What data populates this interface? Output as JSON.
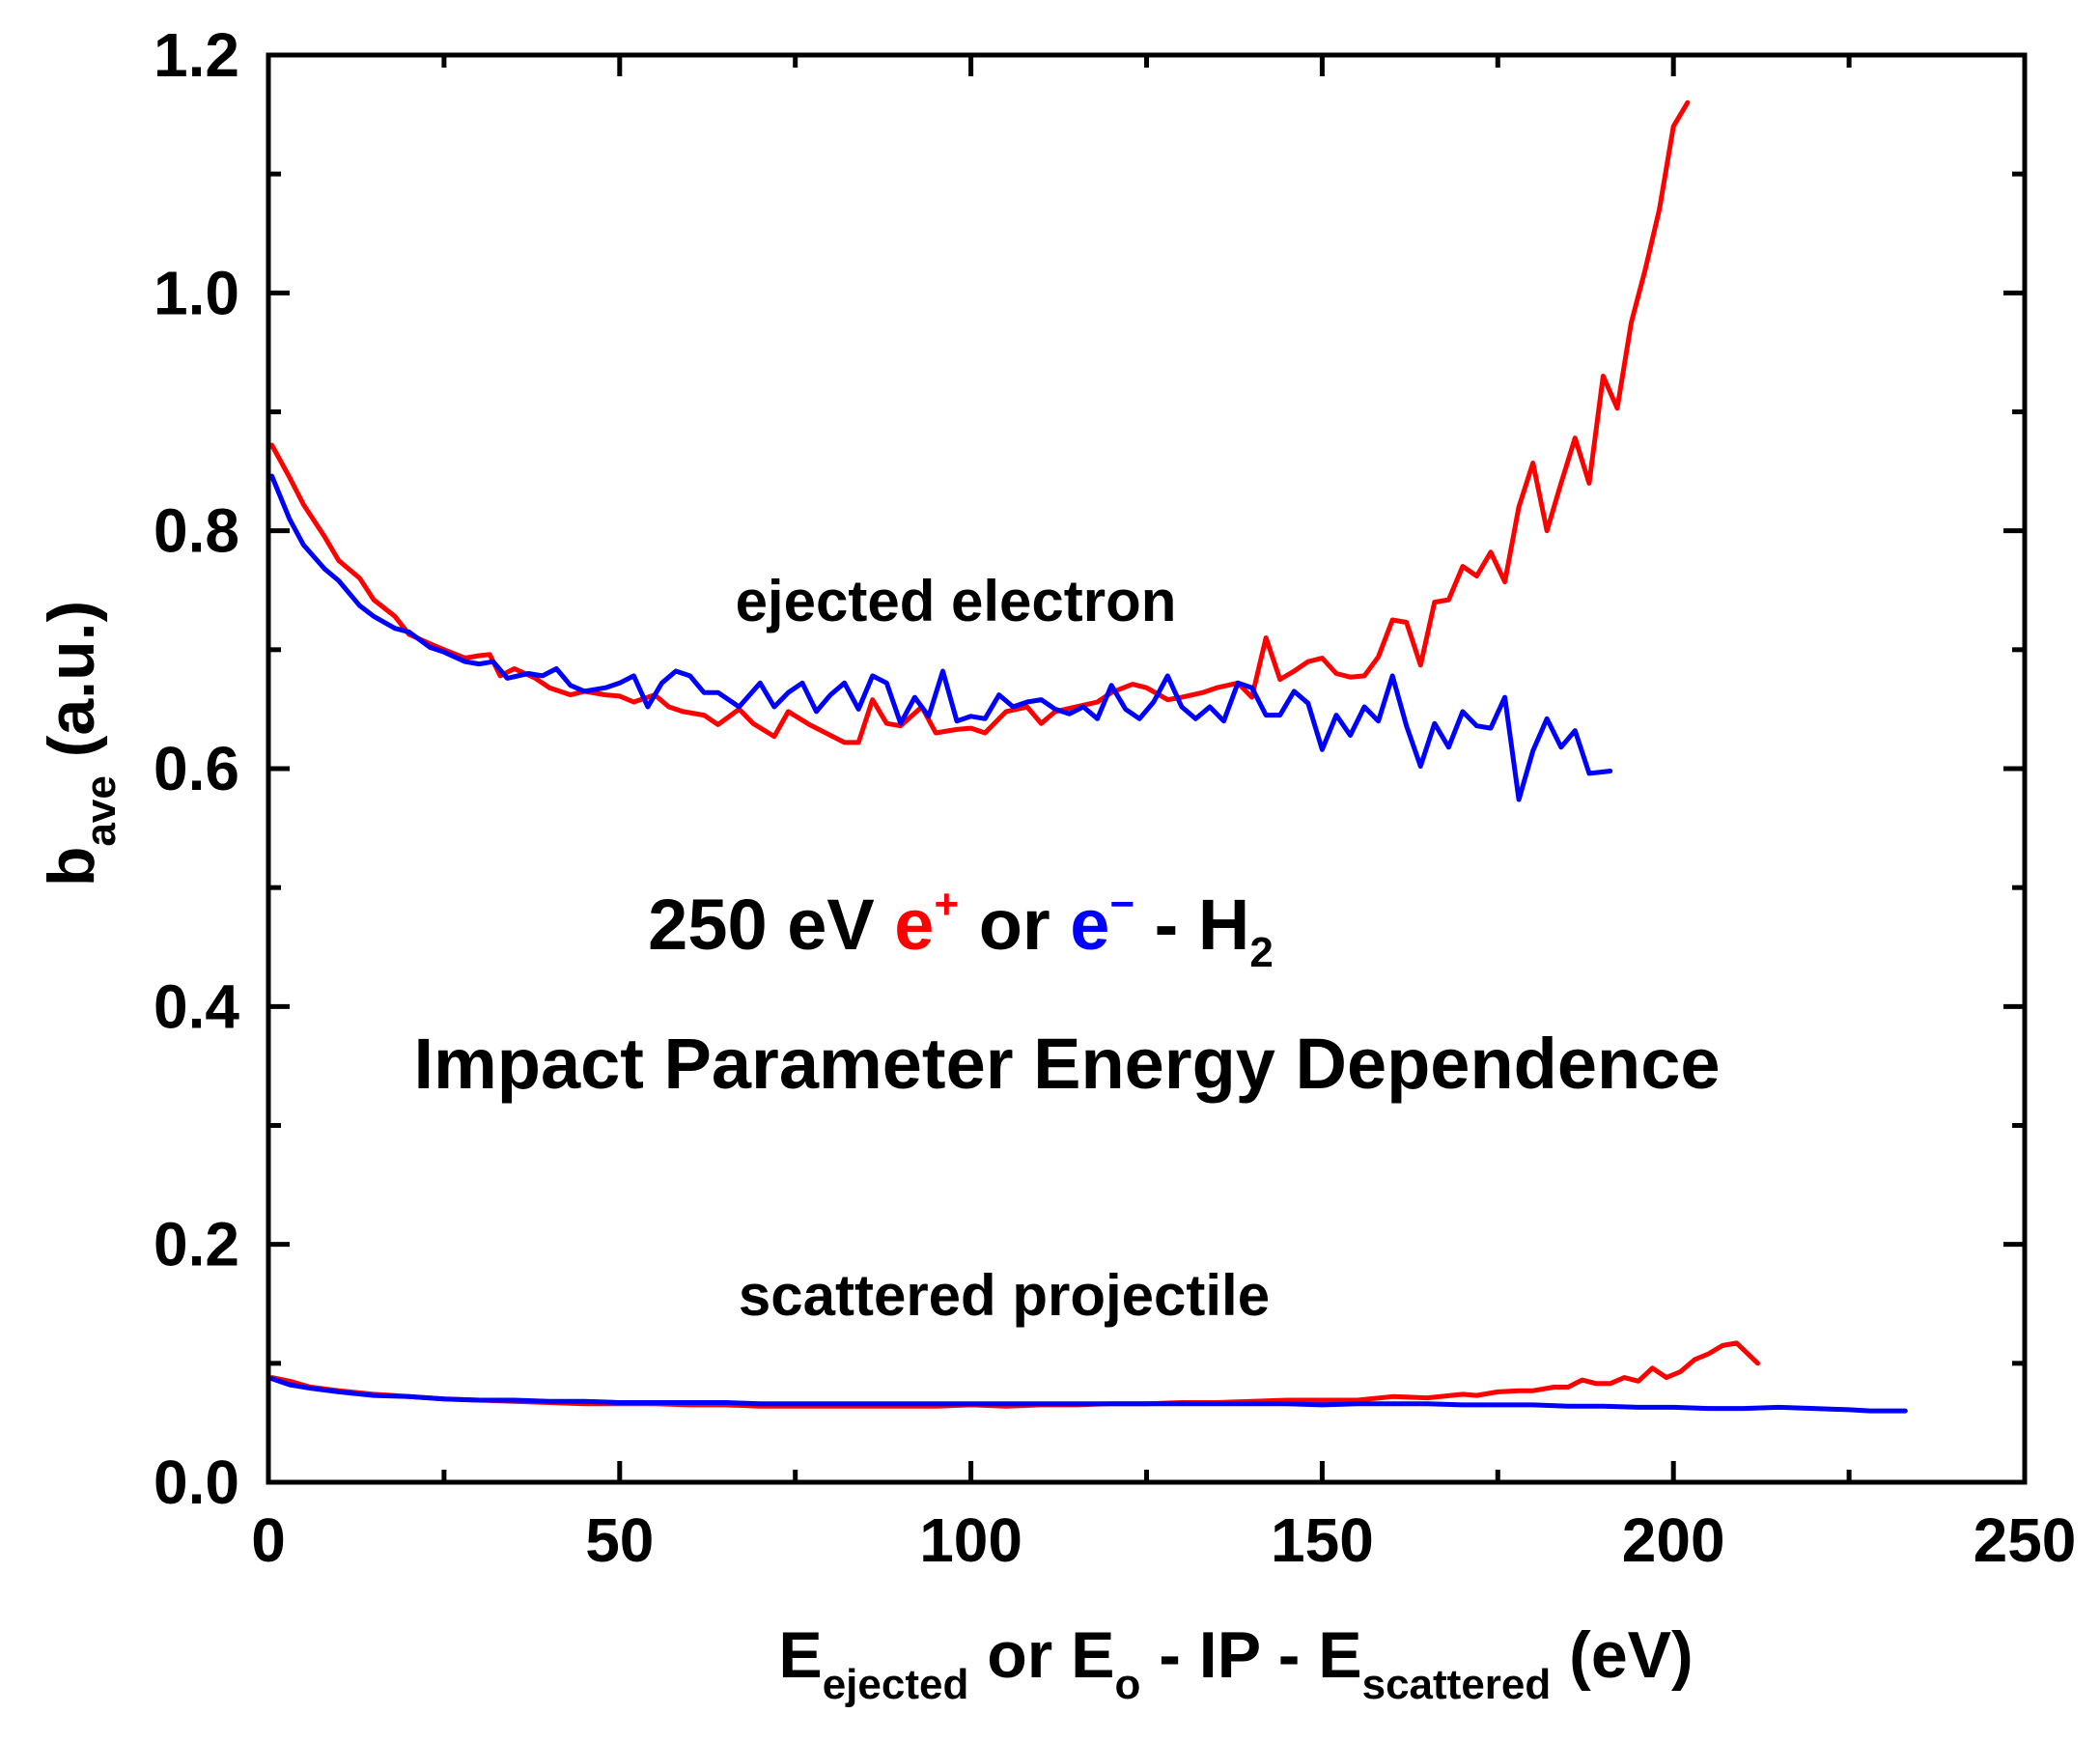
{
  "chart_data": {
    "type": "line",
    "title_line1": {
      "prefix": "250 eV ",
      "positron": "e",
      "positron_sup": "+",
      "or": " or ",
      "electron": "e",
      "electron_sup": "−",
      "target": " - H",
      "target_sub": "2"
    },
    "title_line2": "Impact Parameter Energy Dependence",
    "xlabel": {
      "e1": "E",
      "s1": "ejected",
      "or_e": " or E",
      "s2": "o",
      "mid": " - IP - E",
      "s3": "scattered",
      "unit": " (eV)"
    },
    "ylabel": {
      "main": "b",
      "sub": "ave",
      "unit": " (a.u.)"
    },
    "xlim": [
      0,
      250
    ],
    "ylim": [
      0.0,
      1.2
    ],
    "xticks": [
      "0",
      "50",
      "100",
      "150",
      "200",
      "250"
    ],
    "yticks": [
      "0.0",
      "0.2",
      "0.4",
      "0.6",
      "0.8",
      "1.0",
      "1.2"
    ],
    "annotations": {
      "ejected": "ejected electron",
      "scattered": "scattered projectile"
    },
    "colors": {
      "positron": "#ff0000",
      "electron": "#0000ff",
      "axis": "#000000"
    },
    "series": [
      {
        "name": "e+ ejected electron",
        "color": "#ff0000",
        "points": [
          [
            0.5,
            0.872
          ],
          [
            3,
            0.845
          ],
          [
            5,
            0.822
          ],
          [
            8,
            0.795
          ],
          [
            10,
            0.775
          ],
          [
            13,
            0.76
          ],
          [
            15,
            0.742
          ],
          [
            18,
            0.728
          ],
          [
            20,
            0.713
          ],
          [
            23,
            0.705
          ],
          [
            25,
            0.7
          ],
          [
            28,
            0.693
          ],
          [
            30,
            0.695
          ],
          [
            31.5,
            0.696
          ],
          [
            33,
            0.678
          ],
          [
            35,
            0.684
          ],
          [
            38,
            0.676
          ],
          [
            40,
            0.668
          ],
          [
            43,
            0.662
          ],
          [
            45,
            0.665
          ],
          [
            48,
            0.662
          ],
          [
            50,
            0.661
          ],
          [
            52,
            0.656
          ],
          [
            55,
            0.662
          ],
          [
            57,
            0.652
          ],
          [
            59,
            0.648
          ],
          [
            62,
            0.645
          ],
          [
            64,
            0.637
          ],
          [
            67,
            0.65
          ],
          [
            69,
            0.638
          ],
          [
            72,
            0.627
          ],
          [
            74,
            0.648
          ],
          [
            77,
            0.637
          ],
          [
            80,
            0.628
          ],
          [
            82,
            0.622
          ],
          [
            84,
            0.622
          ],
          [
            86,
            0.658
          ],
          [
            88,
            0.638
          ],
          [
            90,
            0.636
          ],
          [
            93,
            0.652
          ],
          [
            95,
            0.63
          ],
          [
            98,
            0.633
          ],
          [
            100,
            0.634
          ],
          [
            102,
            0.63
          ],
          [
            105,
            0.648
          ],
          [
            108,
            0.652
          ],
          [
            110,
            0.638
          ],
          [
            112,
            0.648
          ],
          [
            115,
            0.652
          ],
          [
            118,
            0.656
          ],
          [
            120,
            0.664
          ],
          [
            123,
            0.671
          ],
          [
            125,
            0.668
          ],
          [
            128,
            0.658
          ],
          [
            130,
            0.66
          ],
          [
            133,
            0.664
          ],
          [
            135,
            0.668
          ],
          [
            138,
            0.672
          ],
          [
            140,
            0.66
          ],
          [
            142,
            0.71
          ],
          [
            144,
            0.675
          ],
          [
            146,
            0.682
          ],
          [
            148,
            0.69
          ],
          [
            150,
            0.693
          ],
          [
            152,
            0.68
          ],
          [
            154,
            0.677
          ],
          [
            156,
            0.678
          ],
          [
            158,
            0.694
          ],
          [
            160,
            0.725
          ],
          [
            162,
            0.723
          ],
          [
            164,
            0.687
          ],
          [
            166,
            0.74
          ],
          [
            168,
            0.742
          ],
          [
            170,
            0.77
          ],
          [
            172,
            0.762
          ],
          [
            174,
            0.782
          ],
          [
            176,
            0.757
          ],
          [
            178,
            0.82
          ],
          [
            180,
            0.857
          ],
          [
            182,
            0.8
          ],
          [
            184,
            0.84
          ],
          [
            186,
            0.878
          ],
          [
            188,
            0.84
          ],
          [
            190,
            0.93
          ],
          [
            192,
            0.903
          ],
          [
            194,
            0.975
          ],
          [
            196,
            1.02
          ],
          [
            198,
            1.07
          ],
          [
            200,
            1.14
          ],
          [
            202,
            1.16
          ]
        ]
      },
      {
        "name": "e- ejected electron",
        "color": "#0000ff",
        "points": [
          [
            0.5,
            0.846
          ],
          [
            3,
            0.81
          ],
          [
            5,
            0.788
          ],
          [
            8,
            0.768
          ],
          [
            10,
            0.758
          ],
          [
            13,
            0.737
          ],
          [
            15,
            0.728
          ],
          [
            18,
            0.718
          ],
          [
            20,
            0.715
          ],
          [
            23,
            0.702
          ],
          [
            25,
            0.698
          ],
          [
            28,
            0.69
          ],
          [
            30,
            0.688
          ],
          [
            32,
            0.69
          ],
          [
            34,
            0.676
          ],
          [
            37,
            0.68
          ],
          [
            39,
            0.678
          ],
          [
            41,
            0.684
          ],
          [
            43,
            0.67
          ],
          [
            45,
            0.665
          ],
          [
            48,
            0.668
          ],
          [
            50,
            0.672
          ],
          [
            52,
            0.678
          ],
          [
            54,
            0.652
          ],
          [
            56,
            0.672
          ],
          [
            58,
            0.682
          ],
          [
            60,
            0.678
          ],
          [
            62,
            0.664
          ],
          [
            64,
            0.664
          ],
          [
            67,
            0.652
          ],
          [
            70,
            0.672
          ],
          [
            72,
            0.652
          ],
          [
            74,
            0.664
          ],
          [
            76,
            0.672
          ],
          [
            78,
            0.648
          ],
          [
            80,
            0.662
          ],
          [
            82,
            0.672
          ],
          [
            84,
            0.65
          ],
          [
            86,
            0.678
          ],
          [
            88,
            0.672
          ],
          [
            90,
            0.638
          ],
          [
            92,
            0.66
          ],
          [
            94,
            0.644
          ],
          [
            96,
            0.682
          ],
          [
            98,
            0.64
          ],
          [
            100,
            0.644
          ],
          [
            102,
            0.642
          ],
          [
            104,
            0.662
          ],
          [
            106,
            0.652
          ],
          [
            108,
            0.656
          ],
          [
            110,
            0.658
          ],
          [
            112,
            0.65
          ],
          [
            114,
            0.646
          ],
          [
            116,
            0.652
          ],
          [
            118,
            0.642
          ],
          [
            120,
            0.67
          ],
          [
            122,
            0.65
          ],
          [
            124,
            0.642
          ],
          [
            126,
            0.656
          ],
          [
            128,
            0.678
          ],
          [
            130,
            0.652
          ],
          [
            132,
            0.642
          ],
          [
            134,
            0.652
          ],
          [
            136,
            0.64
          ],
          [
            138,
            0.672
          ],
          [
            140,
            0.668
          ],
          [
            142,
            0.645
          ],
          [
            144,
            0.645
          ],
          [
            146,
            0.665
          ],
          [
            148,
            0.655
          ],
          [
            150,
            0.616
          ],
          [
            152,
            0.645
          ],
          [
            154,
            0.628
          ],
          [
            156,
            0.652
          ],
          [
            158,
            0.64
          ],
          [
            160,
            0.678
          ],
          [
            162,
            0.636
          ],
          [
            164,
            0.602
          ],
          [
            166,
            0.638
          ],
          [
            168,
            0.618
          ],
          [
            170,
            0.648
          ],
          [
            172,
            0.636
          ],
          [
            174,
            0.634
          ],
          [
            176,
            0.66
          ],
          [
            178,
            0.574
          ],
          [
            180,
            0.615
          ],
          [
            182,
            0.642
          ],
          [
            184,
            0.618
          ],
          [
            186,
            0.632
          ],
          [
            188,
            0.596
          ],
          [
            191,
            0.598
          ]
        ]
      },
      {
        "name": "e+ scattered projectile",
        "color": "#ff0000",
        "points": [
          [
            0.5,
            0.088
          ],
          [
            3,
            0.085
          ],
          [
            6,
            0.08
          ],
          [
            10,
            0.077
          ],
          [
            15,
            0.074
          ],
          [
            20,
            0.072
          ],
          [
            25,
            0.07
          ],
          [
            30,
            0.069
          ],
          [
            35,
            0.068
          ],
          [
            40,
            0.067
          ],
          [
            45,
            0.066
          ],
          [
            50,
            0.066
          ],
          [
            55,
            0.066
          ],
          [
            60,
            0.065
          ],
          [
            65,
            0.065
          ],
          [
            70,
            0.064
          ],
          [
            75,
            0.064
          ],
          [
            80,
            0.064
          ],
          [
            85,
            0.064
          ],
          [
            90,
            0.064
          ],
          [
            95,
            0.064
          ],
          [
            100,
            0.065
          ],
          [
            105,
            0.064
          ],
          [
            110,
            0.065
          ],
          [
            115,
            0.065
          ],
          [
            120,
            0.066
          ],
          [
            125,
            0.066
          ],
          [
            130,
            0.067
          ],
          [
            135,
            0.067
          ],
          [
            140,
            0.068
          ],
          [
            145,
            0.069
          ],
          [
            150,
            0.069
          ],
          [
            155,
            0.069
          ],
          [
            160,
            0.072
          ],
          [
            165,
            0.071
          ],
          [
            170,
            0.074
          ],
          [
            172,
            0.073
          ],
          [
            175,
            0.076
          ],
          [
            178,
            0.077
          ],
          [
            180,
            0.077
          ],
          [
            183,
            0.08
          ],
          [
            185,
            0.08
          ],
          [
            187,
            0.086
          ],
          [
            189,
            0.083
          ],
          [
            191,
            0.083
          ],
          [
            193,
            0.088
          ],
          [
            195,
            0.085
          ],
          [
            197,
            0.096
          ],
          [
            199,
            0.088
          ],
          [
            201,
            0.093
          ],
          [
            203,
            0.103
          ],
          [
            205,
            0.108
          ],
          [
            207,
            0.115
          ],
          [
            209,
            0.117
          ],
          [
            212,
            0.1
          ]
        ]
      },
      {
        "name": "e- scattered projectile",
        "color": "#0000ff",
        "points": [
          [
            0.5,
            0.087
          ],
          [
            3,
            0.082
          ],
          [
            6,
            0.079
          ],
          [
            10,
            0.076
          ],
          [
            15,
            0.073
          ],
          [
            20,
            0.072
          ],
          [
            25,
            0.07
          ],
          [
            30,
            0.069
          ],
          [
            35,
            0.069
          ],
          [
            40,
            0.068
          ],
          [
            45,
            0.068
          ],
          [
            50,
            0.067
          ],
          [
            55,
            0.067
          ],
          [
            60,
            0.067
          ],
          [
            65,
            0.067
          ],
          [
            70,
            0.066
          ],
          [
            75,
            0.066
          ],
          [
            80,
            0.066
          ],
          [
            85,
            0.066
          ],
          [
            90,
            0.066
          ],
          [
            95,
            0.066
          ],
          [
            100,
            0.066
          ],
          [
            105,
            0.066
          ],
          [
            110,
            0.066
          ],
          [
            115,
            0.066
          ],
          [
            120,
            0.066
          ],
          [
            125,
            0.066
          ],
          [
            130,
            0.066
          ],
          [
            135,
            0.066
          ],
          [
            140,
            0.066
          ],
          [
            145,
            0.066
          ],
          [
            150,
            0.065
          ],
          [
            155,
            0.066
          ],
          [
            160,
            0.066
          ],
          [
            165,
            0.066
          ],
          [
            170,
            0.065
          ],
          [
            175,
            0.065
          ],
          [
            180,
            0.065
          ],
          [
            185,
            0.064
          ],
          [
            190,
            0.064
          ],
          [
            195,
            0.063
          ],
          [
            200,
            0.063
          ],
          [
            205,
            0.062
          ],
          [
            210,
            0.062
          ],
          [
            215,
            0.063
          ],
          [
            220,
            0.062
          ],
          [
            225,
            0.061
          ],
          [
            228,
            0.06
          ],
          [
            230,
            0.06
          ],
          [
            233,
            0.06
          ]
        ]
      }
    ]
  }
}
